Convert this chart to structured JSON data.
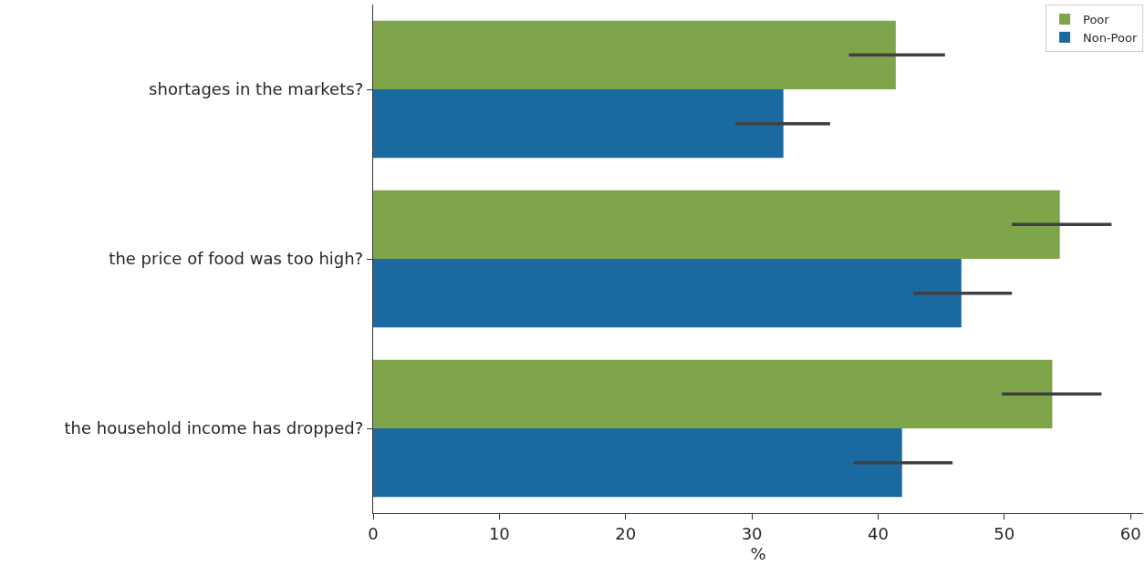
{
  "chart_data": {
    "type": "bar",
    "orientation": "horizontal",
    "xlabel": "%",
    "categories": [
      "shortages in the markets?",
      "the price of food was too high?",
      "the household income has dropped?"
    ],
    "series": [
      {
        "name": "Poor",
        "color": "#7fa54a",
        "values": [
          41.4,
          54.4,
          53.8
        ],
        "errors": [
          [
            37.7,
            45.3
          ],
          [
            50.6,
            58.5
          ],
          [
            49.8,
            57.7
          ]
        ]
      },
      {
        "name": "Non-Poor",
        "color": "#1a69a1",
        "values": [
          32.5,
          46.6,
          41.9
        ],
        "errors": [
          [
            28.7,
            36.2
          ],
          [
            42.8,
            50.6
          ],
          [
            38.1,
            45.9
          ]
        ]
      }
    ],
    "xlim": [
      0,
      61
    ],
    "xticks": [
      0,
      10,
      20,
      30,
      40,
      50,
      60
    ],
    "grid": false,
    "legend": "top right"
  }
}
